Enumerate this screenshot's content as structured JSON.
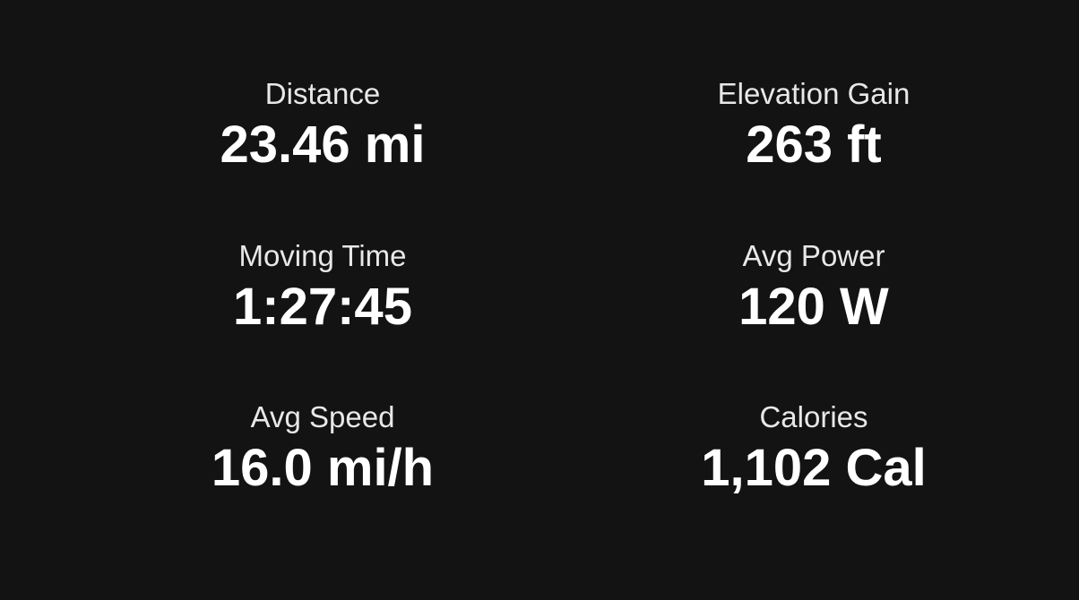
{
  "stats": [
    {
      "label": "Distance",
      "value": "23.46 mi"
    },
    {
      "label": "Elevation Gain",
      "value": "263 ft"
    },
    {
      "label": "Moving Time",
      "value": "1:27:45"
    },
    {
      "label": "Avg Power",
      "value": "120 W"
    },
    {
      "label": "Avg Speed",
      "value": "16.0 mi/h"
    },
    {
      "label": "Calories",
      "value": "1,102 Cal"
    }
  ]
}
